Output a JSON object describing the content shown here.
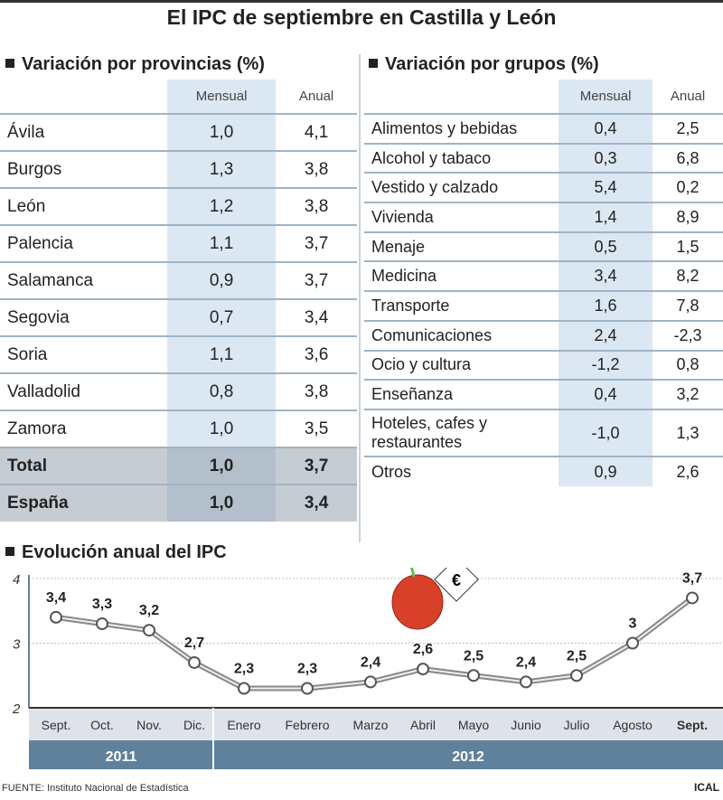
{
  "title": "El IPC de septiembre en Castilla y León",
  "provinces": {
    "heading": "Variación por provincias (%)",
    "col_monthly": "Mensual",
    "col_annual": "Anual",
    "rows": [
      {
        "name": "Ávila",
        "monthly": "1,0",
        "annual": "4,1"
      },
      {
        "name": "Burgos",
        "monthly": "1,3",
        "annual": "3,8"
      },
      {
        "name": "León",
        "monthly": "1,2",
        "annual": "3,8"
      },
      {
        "name": "Palencia",
        "monthly": "1,1",
        "annual": "3,7"
      },
      {
        "name": "Salamanca",
        "monthly": "0,9",
        "annual": "3,7"
      },
      {
        "name": "Segovia",
        "monthly": "0,7",
        "annual": "3,4"
      },
      {
        "name": "Soria",
        "monthly": "1,1",
        "annual": "3,6"
      },
      {
        "name": "Valladolid",
        "monthly": "0,8",
        "annual": "3,8"
      },
      {
        "name": "Zamora",
        "monthly": "1,0",
        "annual": "3,5"
      },
      {
        "name": "Total",
        "monthly": "1,0",
        "annual": "3,7"
      },
      {
        "name": "España",
        "monthly": "1,0",
        "annual": "3,4"
      }
    ]
  },
  "groups": {
    "heading": "Variación por grupos (%)",
    "col_monthly": "Mensual",
    "col_annual": "Anual",
    "rows": [
      {
        "name": "Alimentos y bebidas",
        "monthly": "0,4",
        "annual": "2,5"
      },
      {
        "name": "Alcohol y tabaco",
        "monthly": "0,3",
        "annual": "6,8"
      },
      {
        "name": "Vestido y calzado",
        "monthly": "5,4",
        "annual": "0,2"
      },
      {
        "name": "Vivienda",
        "monthly": "1,4",
        "annual": "8,9"
      },
      {
        "name": "Menaje",
        "monthly": "0,5",
        "annual": "1,5"
      },
      {
        "name": "Medicina",
        "monthly": "3,4",
        "annual": "8,2"
      },
      {
        "name": "Transporte",
        "monthly": "1,6",
        "annual": "7,8"
      },
      {
        "name": "Comunicaciones",
        "monthly": "2,4",
        "annual": "-2,3"
      },
      {
        "name": "Ocio y cultura",
        "monthly": "-1,2",
        "annual": "0,8"
      },
      {
        "name": "Enseñanza",
        "monthly": "0,4",
        "annual": "3,2"
      },
      {
        "name": "Hoteles, cafes y restaurantes",
        "monthly": "-1,0",
        "annual": "1,3"
      },
      {
        "name": "Otros",
        "monthly": "0,9",
        "annual": "2,6"
      }
    ]
  },
  "chart_data": {
    "type": "line",
    "title": "Evolución anual del IPC",
    "categories": [
      "Sept.",
      "Oct.",
      "Nov.",
      "Dic.",
      "Enero",
      "Febrero",
      "Marzo",
      "Abril",
      "Mayo",
      "Junio",
      "Julio",
      "Agosto",
      "Sept."
    ],
    "years": [
      {
        "label": "2011",
        "span": 4
      },
      {
        "label": "2012",
        "span": 9
      }
    ],
    "values": [
      3.4,
      3.3,
      3.2,
      2.7,
      2.3,
      2.3,
      2.4,
      2.6,
      2.5,
      2.4,
      2.5,
      3,
      3.7
    ],
    "data_labels": [
      "3,4",
      "3,3",
      "3,2",
      "2,7",
      "2,3",
      "2,3",
      "2,4",
      "2,6",
      "2,5",
      "2,4",
      "2,5",
      "3",
      "3,7"
    ],
    "yticks": [
      "2",
      "3",
      "4"
    ],
    "ylim": [
      2,
      4
    ],
    "grid": true,
    "colors": {
      "line": "#999999",
      "band": "#dde3e8",
      "year_band": "#5f819b"
    }
  },
  "source": "FUENTE: Instituto Nacional de Estadística",
  "credit": "ICAL"
}
